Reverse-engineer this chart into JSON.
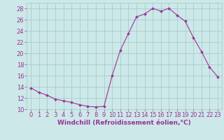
{
  "hours": [
    0,
    1,
    2,
    3,
    4,
    5,
    6,
    7,
    8,
    9,
    10,
    11,
    12,
    13,
    14,
    15,
    16,
    17,
    18,
    19,
    20,
    21,
    22,
    23
  ],
  "values": [
    13.8,
    13.0,
    12.5,
    11.8,
    11.5,
    11.2,
    10.8,
    10.5,
    10.4,
    10.5,
    16.0,
    20.5,
    23.5,
    26.5,
    27.0,
    28.0,
    27.5,
    28.0,
    26.8,
    25.7,
    22.8,
    20.3,
    17.5,
    15.8
  ],
  "line_color": "#993399",
  "marker": "D",
  "marker_size": 2.0,
  "bg_color": "#cce8e8",
  "grid_color": "#aacccc",
  "xlabel": "Windchill (Refroidissement éolien,°C)",
  "ylim": [
    10,
    29
  ],
  "xlim": [
    -0.5,
    23.5
  ],
  "yticks": [
    10,
    12,
    14,
    16,
    18,
    20,
    22,
    24,
    26,
    28
  ],
  "xticks": [
    0,
    1,
    2,
    3,
    4,
    5,
    6,
    7,
    8,
    9,
    10,
    11,
    12,
    13,
    14,
    15,
    16,
    17,
    18,
    19,
    20,
    21,
    22,
    23
  ],
  "tick_color": "#993399",
  "label_color": "#993399",
  "label_fontsize": 6.5,
  "tick_fontsize": 6.0
}
